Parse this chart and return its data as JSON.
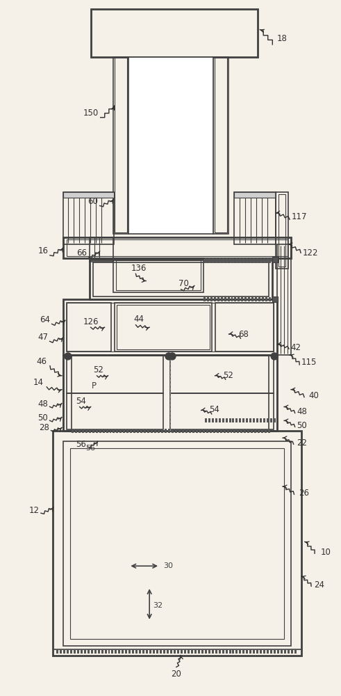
{
  "bg_color": "#f5f0e8",
  "line_color": "#404040",
  "figsize": [
    4.91,
    10.0
  ],
  "dpi": 100
}
